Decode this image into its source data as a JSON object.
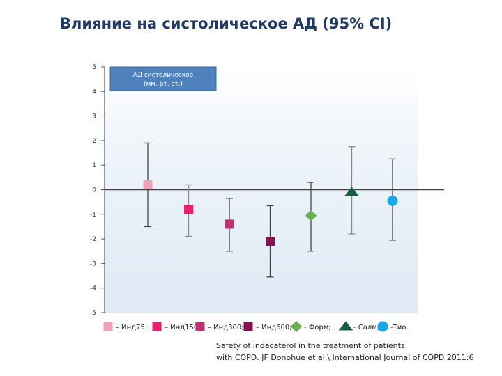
{
  "title": "Влияние на систолическое АД (95% CI)",
  "citation": {
    "line1": "Safety of indacaterol in the treatment of patients",
    "line2": "with COPD. JF Donohue et al.\\ International Journal of COPD 2011:6"
  },
  "chart_data": {
    "type": "scatter",
    "title": "",
    "annotation_box": {
      "line1": "АД систолическое",
      "line2": "(мм. рт. ст.)"
    },
    "ylim": [
      -5,
      5
    ],
    "y_ticks": [
      "5",
      "4",
      "3",
      "2",
      "1",
      "0",
      "-1",
      "-2",
      "-3",
      "-4",
      "-5"
    ],
    "grid": false,
    "legend_position": "bottom",
    "series": [
      {
        "name": "Инд75",
        "value": 0.2,
        "ci": [
          -1.5,
          1.9
        ],
        "marker": "square",
        "color": "#f4a0b8",
        "legend_label": "– Инд75;"
      },
      {
        "name": "Инд150",
        "value": -0.8,
        "ci": [
          -1.9,
          0.2
        ],
        "marker": "square",
        "color": "#ee1e6e",
        "legend_label": "– Инд150;"
      },
      {
        "name": "Инд300",
        "value": -1.4,
        "ci": [
          -2.5,
          -0.35
        ],
        "marker": "square",
        "color": "#c03070",
        "legend_label": "– Инд300;"
      },
      {
        "name": "Инд600",
        "value": -2.1,
        "ci": [
          -3.55,
          -0.65
        ],
        "marker": "square",
        "color": "#8a1055",
        "legend_label": "– Инд600;"
      },
      {
        "name": "Форм",
        "value": -1.05,
        "ci": [
          -2.5,
          0.3
        ],
        "marker": "diamond",
        "color": "#6ab04c",
        "legend_label": "- Форм;"
      },
      {
        "name": "Салм",
        "value": -0.1,
        "ci": [
          -1.8,
          1.75
        ],
        "marker": "triangle",
        "color": "#1a5c40",
        "legend_label": "- Салм;"
      },
      {
        "name": "Тио",
        "value": -0.45,
        "ci": [
          -2.05,
          1.25
        ],
        "marker": "circle",
        "color": "#1aa7e8",
        "legend_label": "-Тио."
      }
    ]
  }
}
